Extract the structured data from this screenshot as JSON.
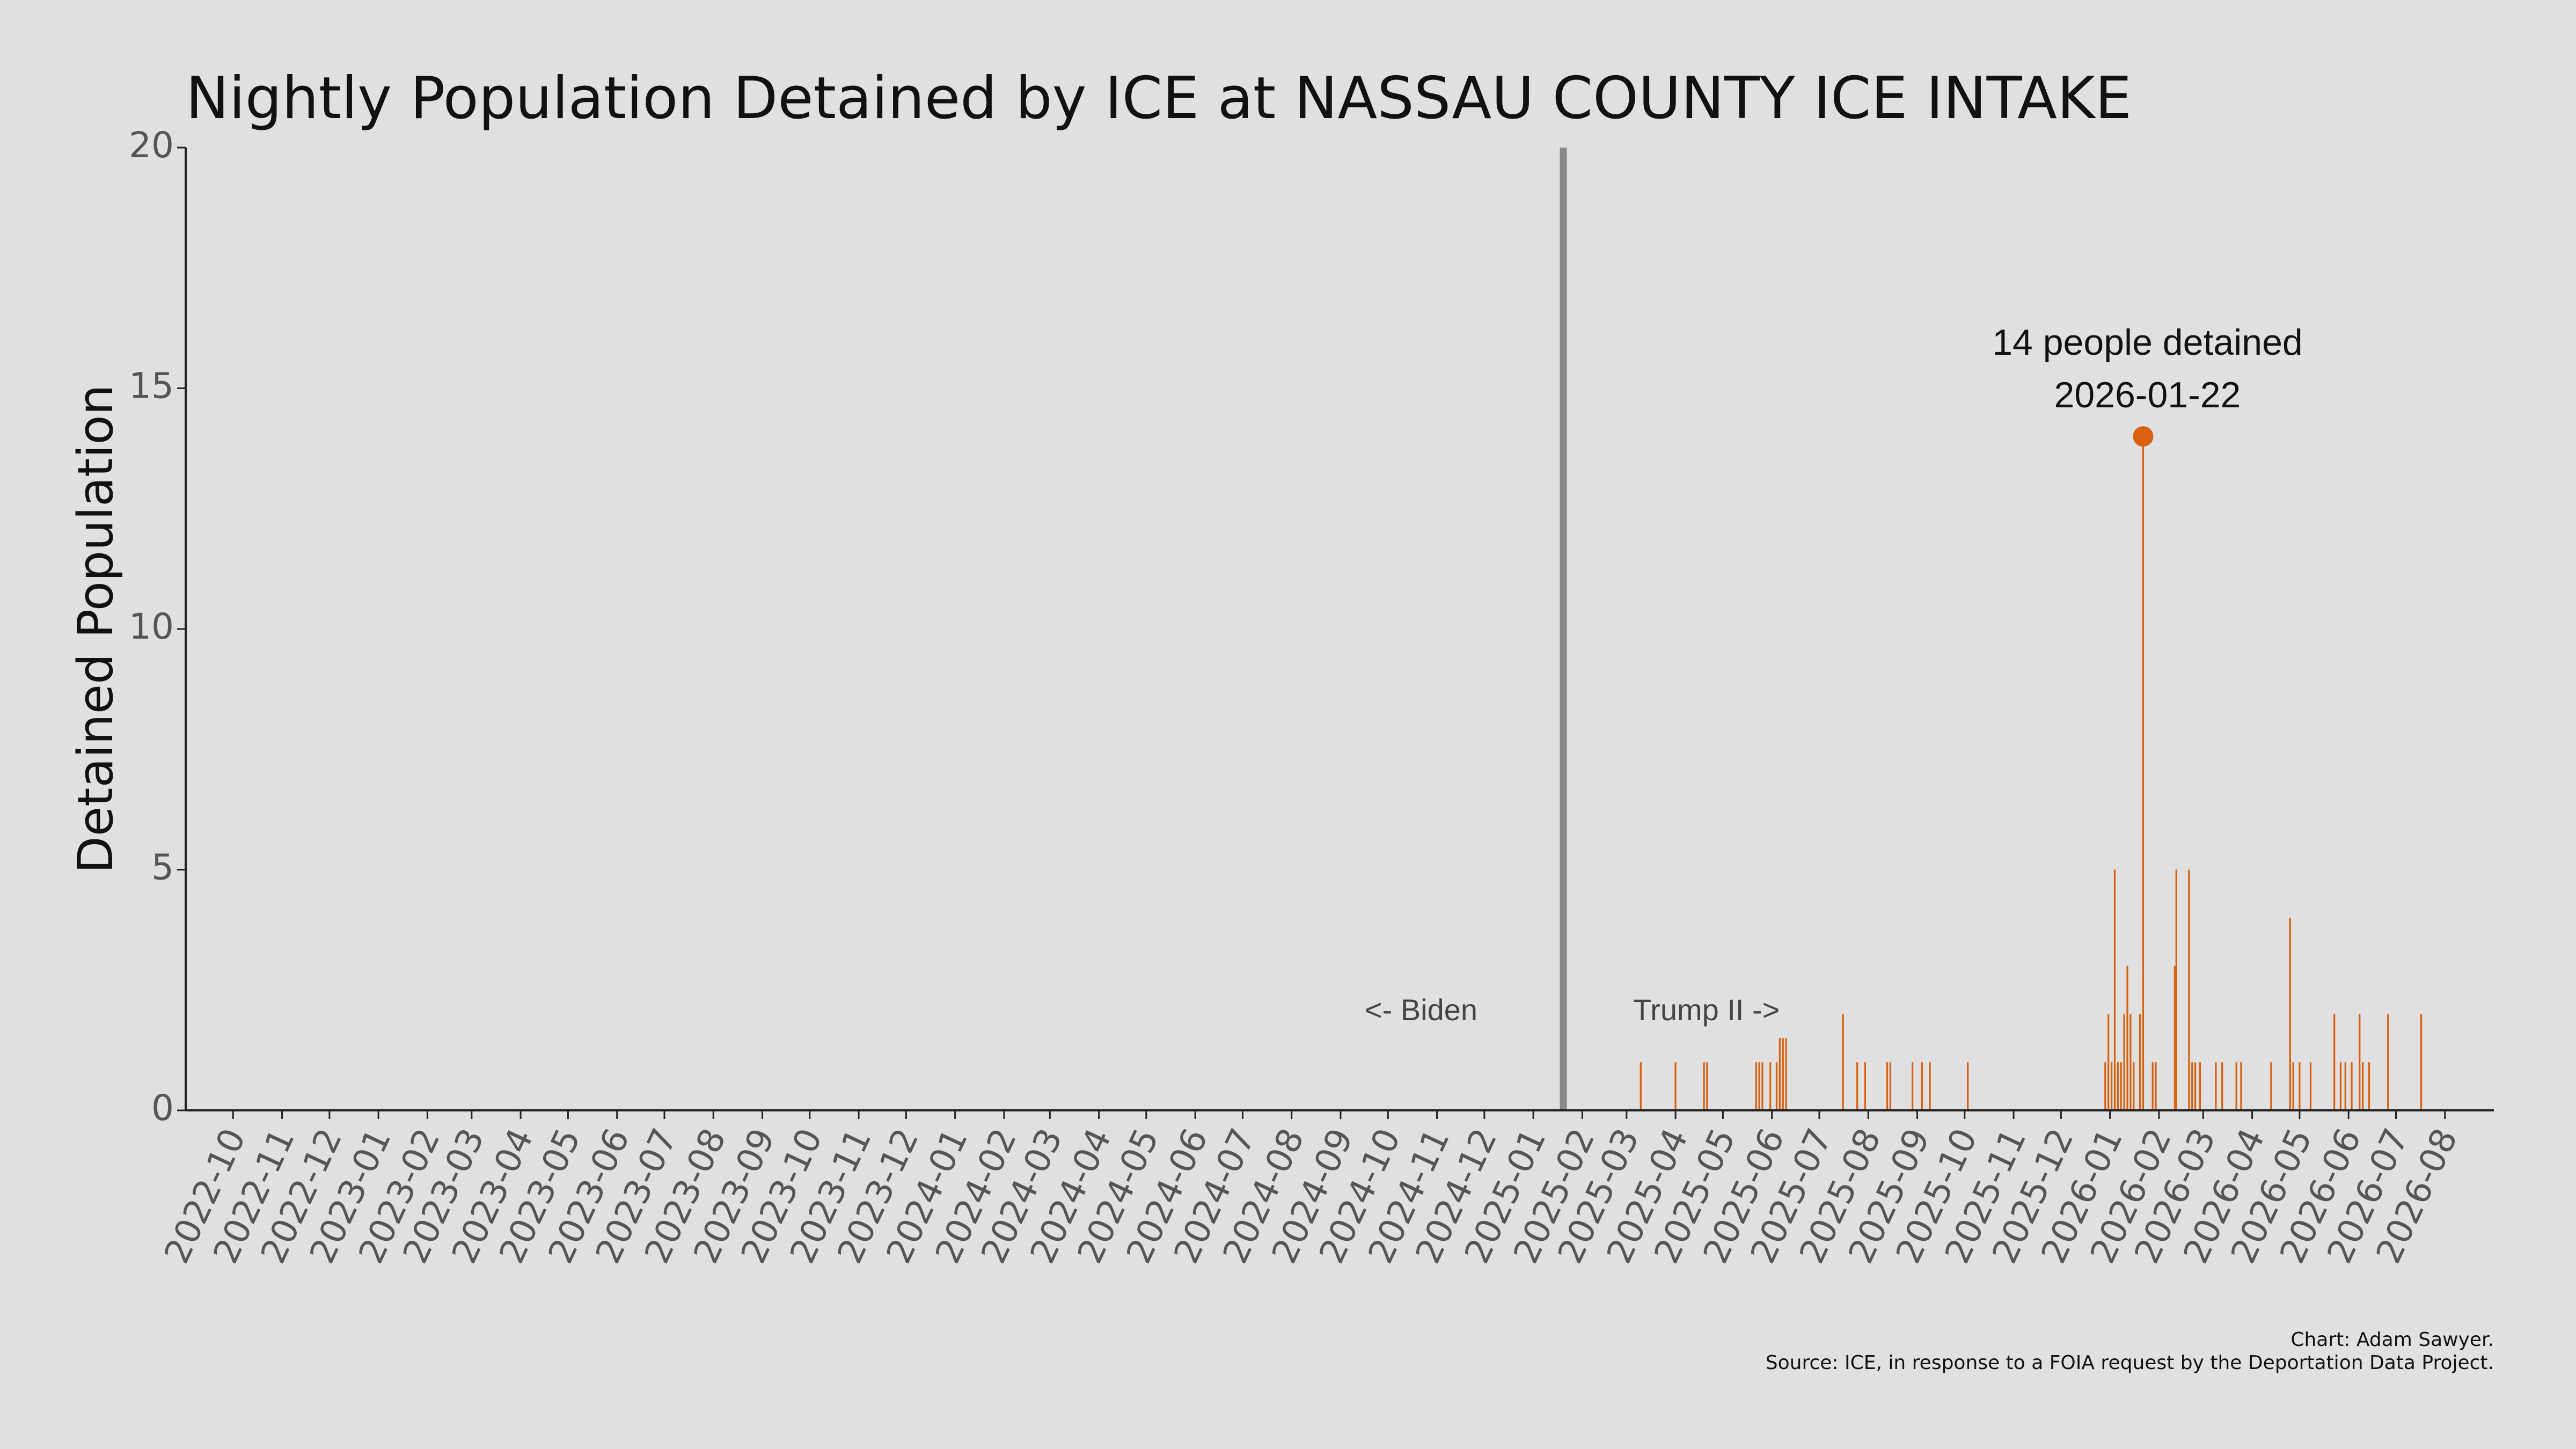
{
  "chart_data": {
    "type": "bar",
    "title": "Nightly Population Detained by ICE at NASSAU COUNTY ICE INTAKE",
    "y_label": "Detained Population",
    "color": "#d9600f",
    "x": [
      "2025-03-10",
      "2025-04-01",
      "2025-04-19",
      "2025-04-21",
      "2025-05-22",
      "2025-05-24",
      "2025-05-26",
      "2025-05-31",
      "2025-06-04",
      "2025-06-06",
      "2025-06-08",
      "2025-06-10",
      "2025-07-16",
      "2025-07-25",
      "2025-07-30",
      "2025-08-13",
      "2025-08-15",
      "2025-08-29",
      "2025-09-04",
      "2025-09-09",
      "2025-10-03",
      "2025-12-29",
      "2025-12-31",
      "2026-01-02",
      "2026-01-04",
      "2026-01-06",
      "2026-01-08",
      "2026-01-10",
      "2026-01-12",
      "2026-01-14",
      "2026-01-16",
      "2026-01-20",
      "2026-01-22",
      "2026-01-28",
      "2026-01-30",
      "2026-02-11",
      "2026-02-12",
      "2026-02-20",
      "2026-02-22",
      "2026-02-24",
      "2026-02-27",
      "2026-03-09",
      "2026-03-13",
      "2026-03-22",
      "2026-03-25",
      "2026-04-13",
      "2026-04-25",
      "2026-04-27",
      "2026-05-01",
      "2026-05-08",
      "2026-05-23",
      "2026-05-27",
      "2026-05-30",
      "2026-06-03",
      "2026-06-08",
      "2026-06-10",
      "2026-06-14",
      "2026-06-26",
      "2026-07-17"
    ],
    "values": [
      1,
      1,
      1,
      1,
      1,
      1,
      1,
      1,
      1,
      1.5,
      1.5,
      1.5,
      2,
      1,
      1,
      1,
      1,
      1,
      1,
      1,
      1,
      1,
      2,
      1,
      5,
      1,
      1,
      2,
      3,
      2,
      1,
      2,
      14,
      1,
      1,
      3,
      5,
      5,
      1,
      1,
      1,
      1,
      1,
      1,
      1,
      1,
      4,
      1,
      1,
      1,
      2,
      1,
      1,
      1,
      2,
      1,
      1,
      2,
      2
    ],
    "xlim": [
      "2022-09-01",
      "2026-09-01"
    ],
    "xticks": [
      "2022-10",
      "2022-11",
      "2022-12",
      "2023-01",
      "2023-02",
      "2023-03",
      "2023-04",
      "2023-05",
      "2023-06",
      "2023-07",
      "2023-08",
      "2023-09",
      "2023-10",
      "2023-11",
      "2023-12",
      "2024-01",
      "2024-02",
      "2024-03",
      "2024-04",
      "2024-05",
      "2024-06",
      "2024-07",
      "2024-08",
      "2024-09",
      "2024-10",
      "2024-11",
      "2024-12",
      "2025-01",
      "2025-02",
      "2025-03",
      "2025-04",
      "2025-05",
      "2025-06",
      "2025-07",
      "2025-08",
      "2025-09",
      "2025-10",
      "2025-11",
      "2025-12",
      "2026-01",
      "2026-02",
      "2026-03",
      "2026-04",
      "2026-05",
      "2026-06",
      "2026-07",
      "2026-08"
    ],
    "ylim": [
      0,
      20
    ],
    "yticks": [
      0,
      5,
      10,
      15,
      20
    ],
    "grid": false,
    "divider": "2025-01-20",
    "divider_color": "#888888",
    "divider_labels": [
      "<- Biden",
      "Trump II ->"
    ],
    "annotation": [
      "14 people detained",
      "2026-01-22"
    ],
    "credits": [
      "Chart: Adam Sawyer.",
      "Source: ICE, in response to a FOIA request by the Deportation Data Project."
    ]
  }
}
